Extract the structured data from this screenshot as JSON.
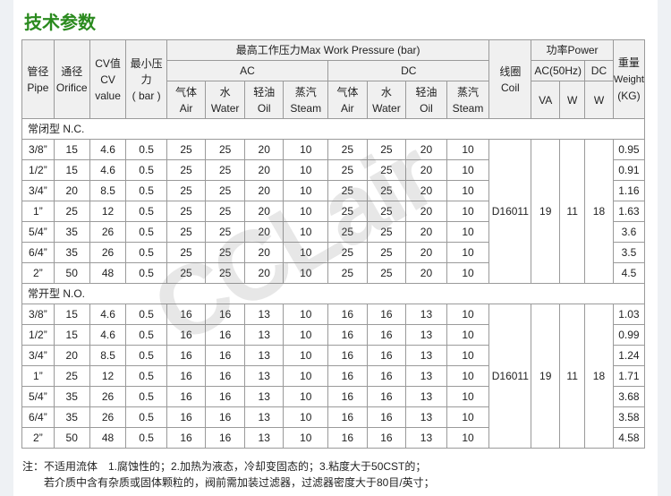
{
  "title": "技术参数",
  "header": {
    "pipe": "管径",
    "pipe_en": "Pipe",
    "orifice": "通径",
    "orifice_en": "Orifice",
    "cv1": "CV值",
    "cv2": "CV",
    "cv3": "value",
    "minp1": "最小压",
    "minp2": "力",
    "minp3": "( bar )",
    "maxp": "最高工作压力Max Work Pressure (bar)",
    "ac": "AC",
    "dc": "DC",
    "media": [
      {
        "cn": "气体",
        "en": "Air"
      },
      {
        "cn": "水",
        "en": "Water"
      },
      {
        "cn": "轻油",
        "en": "Oil"
      },
      {
        "cn": "蒸汽",
        "en": "Steam"
      }
    ],
    "coil": "线圈",
    "coil_en": "Coil",
    "power": "功率Power",
    "ac50": "AC(50Hz)",
    "pdc": "DC",
    "va": "VA",
    "w": "W",
    "w2": "W",
    "weight": "重量",
    "weight_en": "Weight",
    "weight_unit": "(KG)"
  },
  "sections": [
    {
      "label": "常闭型 N.C.",
      "coil": "D16011",
      "va": "19",
      "w_ac": "11",
      "w_dc": "18",
      "rows": [
        [
          "3/8”",
          "15",
          "4.6",
          "0.5",
          "25",
          "25",
          "20",
          "10",
          "25",
          "25",
          "20",
          "10",
          "0.95"
        ],
        [
          "1/2”",
          "15",
          "4.6",
          "0.5",
          "25",
          "25",
          "20",
          "10",
          "25",
          "25",
          "20",
          "10",
          "0.91"
        ],
        [
          "3/4”",
          "20",
          "8.5",
          "0.5",
          "25",
          "25",
          "20",
          "10",
          "25",
          "25",
          "20",
          "10",
          "1.16"
        ],
        [
          "1”",
          "25",
          "12",
          "0.5",
          "25",
          "25",
          "20",
          "10",
          "25",
          "25",
          "20",
          "10",
          "1.63"
        ],
        [
          "5/4”",
          "35",
          "26",
          "0.5",
          "25",
          "25",
          "20",
          "10",
          "25",
          "25",
          "20",
          "10",
          "3.6"
        ],
        [
          "6/4”",
          "35",
          "26",
          "0.5",
          "25",
          "25",
          "20",
          "10",
          "25",
          "25",
          "20",
          "10",
          "3.5"
        ],
        [
          "2”",
          "50",
          "48",
          "0.5",
          "25",
          "25",
          "20",
          "10",
          "25",
          "25",
          "20",
          "10",
          "4.5"
        ]
      ]
    },
    {
      "label": "常开型 N.O.",
      "coil": "D16011",
      "va": "19",
      "w_ac": "11",
      "w_dc": "18",
      "rows": [
        [
          "3/8”",
          "15",
          "4.6",
          "0.5",
          "16",
          "16",
          "13",
          "10",
          "16",
          "16",
          "13",
          "10",
          "1.03"
        ],
        [
          "1/2”",
          "15",
          "4.6",
          "0.5",
          "16",
          "16",
          "13",
          "10",
          "16",
          "16",
          "13",
          "10",
          "0.99"
        ],
        [
          "3/4”",
          "20",
          "8.5",
          "0.5",
          "16",
          "16",
          "13",
          "10",
          "16",
          "16",
          "13",
          "10",
          "1.24"
        ],
        [
          "1”",
          "25",
          "12",
          "0.5",
          "16",
          "16",
          "13",
          "10",
          "16",
          "16",
          "13",
          "10",
          "1.71"
        ],
        [
          "5/4”",
          "35",
          "26",
          "0.5",
          "16",
          "16",
          "13",
          "10",
          "16",
          "16",
          "13",
          "10",
          "3.68"
        ],
        [
          "6/4”",
          "35",
          "26",
          "0.5",
          "16",
          "16",
          "13",
          "10",
          "16",
          "16",
          "13",
          "10",
          "3.58"
        ],
        [
          "2”",
          "50",
          "48",
          "0.5",
          "16",
          "16",
          "13",
          "10",
          "16",
          "16",
          "13",
          "10",
          "4.58"
        ]
      ]
    }
  ],
  "notes": [
    "注：不适用流体　1.腐蚀性的；2.加热为液态，冷却变固态的；3.粘度大于50CST的；",
    "若介质中含有杂质或固体颗粒的，阀前需加装过滤器，过滤器密度大于80目/英寸；"
  ],
  "watermark": "CCLair"
}
